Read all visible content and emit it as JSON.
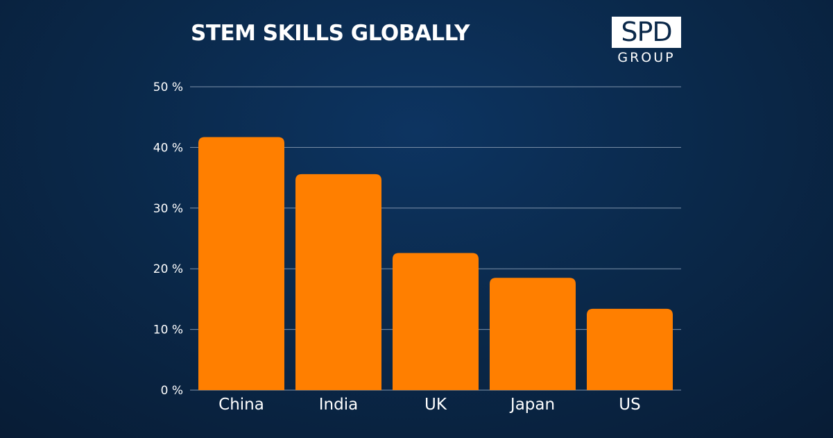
{
  "title": "STEM SKILLS GLOBALLY",
  "logo": {
    "main": "SPD",
    "sub": "GROUP"
  },
  "colors": {
    "bar": "#ff7f00",
    "grid": "#7f93ab",
    "text": "#ffffff"
  },
  "chart_data": {
    "type": "bar",
    "title": "STEM SKILLS GLOBALLY",
    "xlabel": "",
    "ylabel": "",
    "categories": [
      "China",
      "India",
      "UK",
      "Japan",
      "US"
    ],
    "values": [
      41.7,
      35.6,
      22.6,
      18.5,
      13.4
    ],
    "ylim": [
      0,
      50
    ],
    "yticks": [
      0,
      10,
      20,
      30,
      40,
      50
    ],
    "ytick_labels": [
      "0 %",
      "10 %",
      "20 %",
      "30 %",
      "40 %",
      "50 %"
    ],
    "grid": true,
    "legend": "none"
  }
}
